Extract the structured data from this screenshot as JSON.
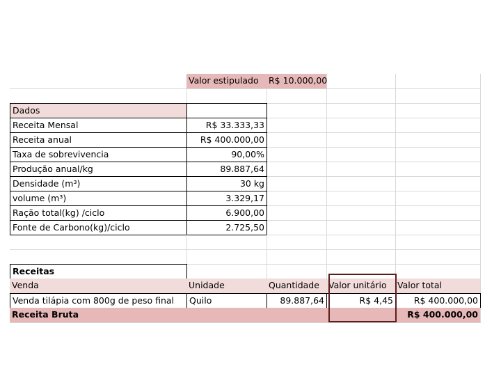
{
  "table": {
    "rows": [
      [
        null,
        "Valor estipulado",
        "R$ 10.000,00",
        null,
        null
      ],
      [
        null,
        null,
        null,
        null,
        null
      ],
      [
        "Dados",
        null,
        null,
        null,
        null
      ],
      [
        "Receita Mensal",
        "R$ 33.333,33",
        null,
        null,
        null
      ],
      [
        "Receita anual",
        "R$ 400.000,00",
        null,
        null,
        null
      ],
      [
        "Taxa de sobrevivencia",
        "90,00%",
        null,
        null,
        null
      ],
      [
        "Produção anual/kg",
        "89.887,64",
        null,
        null,
        null
      ],
      [
        "Densidade (m³)",
        "30 kg",
        null,
        null,
        null
      ],
      [
        "volume (m³)",
        "3.329,17",
        null,
        null,
        null
      ],
      [
        "Ração total(kg) /ciclo",
        "6.900,00",
        null,
        null,
        null
      ],
      [
        "Fonte de Carbono(kg)/ciclo",
        "2.725,50",
        null,
        null,
        null
      ],
      [
        null,
        null,
        null,
        null,
        null
      ],
      [
        null,
        null,
        null,
        null,
        null
      ],
      [
        "Receitas",
        null,
        null,
        null,
        null
      ],
      [
        "Venda",
        "Unidade",
        "Quantidade",
        "Valor unitário",
        "Valor total"
      ],
      [
        "Venda tilápia com 800g de peso final",
        "Quilo",
        "89.887,64",
        "R$ 4,45",
        "R$ 400.000,00"
      ],
      [
        "Receita Bruta",
        null,
        null,
        null,
        "R$ 400.000,00"
      ]
    ]
  }
}
